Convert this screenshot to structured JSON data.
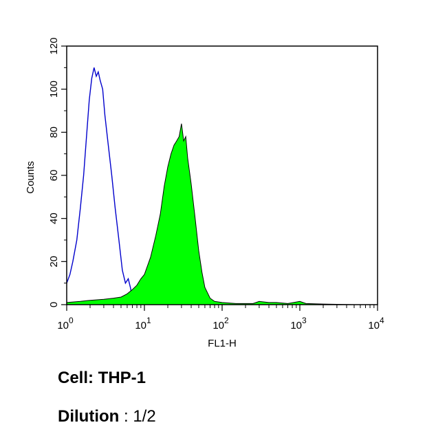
{
  "chart_data": {
    "type": "area",
    "xlabel": "FL1-H",
    "ylabel": "Counts",
    "x_scale": "log",
    "xlim": [
      1,
      10000
    ],
    "ylim": [
      0,
      120
    ],
    "x_ticks": [
      {
        "value": 1,
        "base": "10",
        "exp": "0"
      },
      {
        "value": 10,
        "base": "10",
        "exp": "1"
      },
      {
        "value": 100,
        "base": "10",
        "exp": "2"
      },
      {
        "value": 1000,
        "base": "10",
        "exp": "3"
      },
      {
        "value": 10000,
        "base": "10",
        "exp": "4"
      }
    ],
    "y_ticks": [
      "0",
      "20",
      "40",
      "60",
      "80",
      "100",
      "120"
    ],
    "grid": false,
    "series": [
      {
        "style": "outline",
        "color": "#0000cc",
        "points": [
          [
            1.0,
            10
          ],
          [
            1.1,
            14
          ],
          [
            1.2,
            20
          ],
          [
            1.35,
            30
          ],
          [
            1.5,
            45
          ],
          [
            1.65,
            60
          ],
          [
            1.8,
            78
          ],
          [
            1.95,
            95
          ],
          [
            2.1,
            105
          ],
          [
            2.25,
            110
          ],
          [
            2.4,
            106
          ],
          [
            2.55,
            108
          ],
          [
            2.7,
            104
          ],
          [
            2.9,
            100
          ],
          [
            3.1,
            88
          ],
          [
            3.4,
            75
          ],
          [
            3.8,
            60
          ],
          [
            4.2,
            45
          ],
          [
            4.7,
            30
          ],
          [
            5.2,
            16
          ],
          [
            5.7,
            10
          ],
          [
            6.2,
            12
          ],
          [
            6.6,
            8
          ],
          [
            7.0,
            3
          ],
          [
            7.4,
            0
          ]
        ]
      },
      {
        "style": "filled",
        "color": "#00ff00",
        "edge_color": "#000000",
        "points": [
          [
            1.0,
            1
          ],
          [
            1.5,
            1.5
          ],
          [
            2,
            2
          ],
          [
            3,
            2.5
          ],
          [
            4,
            3
          ],
          [
            5,
            3.5
          ],
          [
            6,
            5
          ],
          [
            7,
            7
          ],
          [
            8,
            9
          ],
          [
            9,
            12
          ],
          [
            10,
            14
          ],
          [
            12,
            22
          ],
          [
            14,
            32
          ],
          [
            16,
            42
          ],
          [
            18,
            55
          ],
          [
            20,
            64
          ],
          [
            22,
            70
          ],
          [
            24,
            74
          ],
          [
            26,
            76
          ],
          [
            28,
            78
          ],
          [
            30,
            84
          ],
          [
            32,
            76
          ],
          [
            34,
            78
          ],
          [
            36,
            68
          ],
          [
            40,
            56
          ],
          [
            45,
            40
          ],
          [
            50,
            25
          ],
          [
            55,
            15
          ],
          [
            60,
            8
          ],
          [
            70,
            3
          ],
          [
            80,
            1.5
          ],
          [
            100,
            1
          ],
          [
            150,
            0.5
          ],
          [
            250,
            0.5
          ],
          [
            300,
            1.5
          ],
          [
            400,
            1
          ],
          [
            500,
            1
          ],
          [
            700,
            0.5
          ],
          [
            1000,
            1.5
          ],
          [
            1200,
            0.5
          ],
          [
            2000,
            0.3
          ],
          [
            5000,
            0
          ],
          [
            10000,
            0
          ]
        ]
      }
    ]
  },
  "captions": {
    "cell_label": "Cell: THP-1",
    "dilution_label": "Dilution",
    "dilution_separator": " : ",
    "dilution_value": "1/2"
  }
}
